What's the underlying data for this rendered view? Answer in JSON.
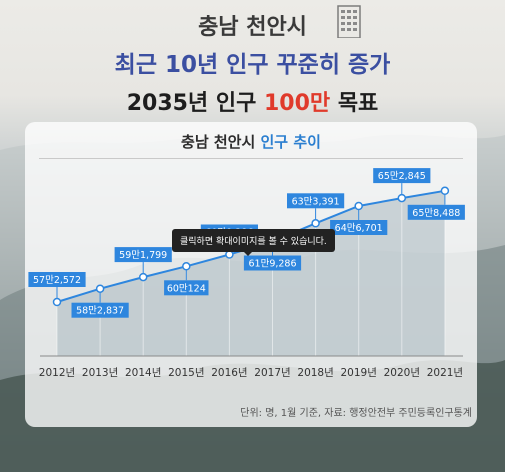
{
  "header": {
    "line1": "충남 천안시",
    "line2": "최근 10년 인구 꾸준히 증가",
    "line3_pre": "2035년 인구 ",
    "line3_accent": "100만",
    "line3_post": " 목표"
  },
  "card": {
    "title_pre": "충남 천안시 ",
    "title_accent": "인구 추이"
  },
  "tooltip": "클릭하면 확대이미지를 볼 수 있습니다.",
  "source": "단위: 명, 1월 기준, 자료: 행정안전부 주민등록인구통계",
  "colors": {
    "line": "#2e86de",
    "label_bg": "#2e86de",
    "area": "#a9b8bf",
    "title_accent": "#2b7fd0",
    "headline_accent": "#e03a2b"
  },
  "chart_data": {
    "type": "area",
    "categories": [
      "2012년",
      "2013년",
      "2014년",
      "2015년",
      "2016년",
      "2017년",
      "2018년",
      "2019년",
      "2020년",
      "2021년"
    ],
    "values": [
      572572,
      582837,
      591799,
      600124,
      609286,
      619286,
      633391,
      646701,
      652845,
      658488
    ],
    "data_labels": [
      "57만2,572",
      "58만2,837",
      "59만1,799",
      "60만124",
      "60만9,286",
      "61만9,286",
      "63만3,391",
      "64만6,701",
      "65만2,845",
      "65만8,488"
    ],
    "title": "충남 천안시 인구 추이",
    "xlabel": "",
    "ylabel": "",
    "ylim": [
      520000,
      690000
    ],
    "grid": false,
    "legend": "none"
  }
}
